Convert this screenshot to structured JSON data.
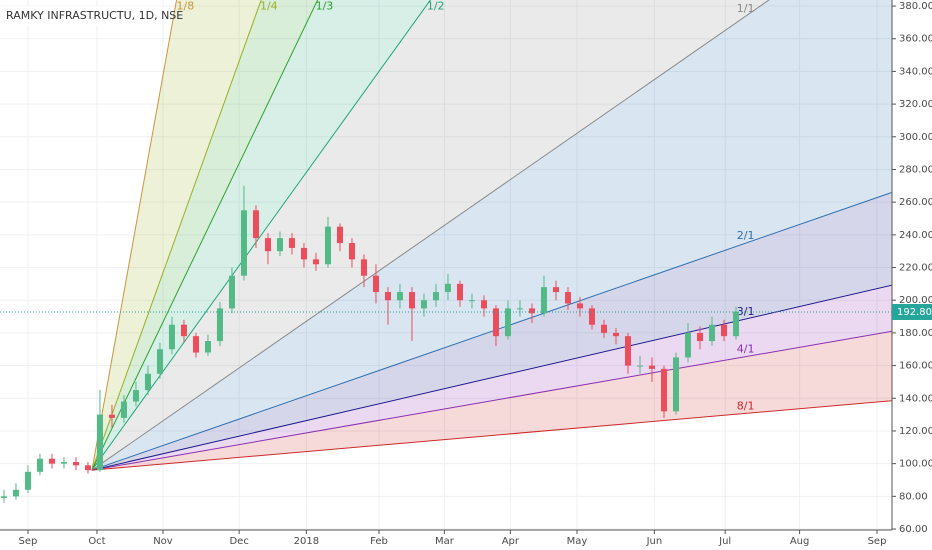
{
  "chart_data": {
    "type": "candlestick",
    "title": "RAMKY INFRASTRUCTU, 1D, NSE",
    "candles": {
      "open": [
        79,
        80,
        84,
        95,
        103,
        100,
        101,
        99,
        96,
        130,
        128,
        138,
        145,
        155,
        170,
        185,
        178,
        168,
        175,
        195,
        215,
        255,
        238,
        230,
        238,
        232,
        225,
        222,
        245,
        235,
        225,
        215,
        205,
        200,
        205,
        195,
        200,
        205,
        210,
        200,
        200,
        195,
        178,
        195,
        195,
        192,
        208,
        205,
        198,
        195,
        185,
        180,
        178,
        160,
        160,
        158,
        132,
        165,
        180,
        175,
        185,
        178
      ],
      "high": [
        84,
        88,
        99,
        106,
        106,
        104,
        104,
        101,
        145,
        136,
        142,
        150,
        160,
        174,
        190,
        188,
        180,
        179,
        199,
        220,
        270,
        258,
        241,
        242,
        241,
        235,
        229,
        251,
        247,
        238,
        228,
        222,
        208,
        210,
        208,
        204,
        210,
        216,
        212,
        204,
        203,
        197,
        200,
        200,
        198,
        215,
        212,
        208,
        202,
        197,
        188,
        183,
        180,
        166,
        165,
        160,
        168,
        186,
        184,
        190,
        188,
        196
      ],
      "low": [
        76,
        78,
        82,
        93,
        97,
        97,
        96,
        94,
        95,
        122,
        125,
        135,
        142,
        152,
        167,
        174,
        165,
        166,
        172,
        192,
        212,
        232,
        222,
        227,
        228,
        220,
        218,
        220,
        230,
        220,
        208,
        198,
        185,
        195,
        175,
        190,
        196,
        200,
        196,
        195,
        190,
        172,
        176,
        190,
        186,
        190,
        200,
        194,
        190,
        182,
        177,
        173,
        155,
        155,
        150,
        128,
        130,
        162,
        170,
        172,
        175,
        176
      ],
      "close": [
        80,
        84,
        95,
        103,
        100,
        101,
        99,
        96,
        130,
        128,
        138,
        145,
        155,
        170,
        185,
        178,
        168,
        175,
        195,
        215,
        255,
        238,
        230,
        238,
        232,
        225,
        222,
        245,
        235,
        225,
        215,
        205,
        200,
        205,
        195,
        200,
        205,
        210,
        200,
        200,
        195,
        178,
        195,
        195,
        192,
        208,
        205,
        198,
        195,
        185,
        180,
        178,
        160,
        160,
        158,
        132,
        165,
        180,
        175,
        185,
        178,
        193
      ]
    },
    "up_color": "#53b987",
    "down_color": "#eb4d5c",
    "xlim": [
      -0.33,
      74
    ],
    "xticks": [
      {
        "value": 2.0,
        "label": "Sep"
      },
      {
        "value": 7.75,
        "label": "Oct"
      },
      {
        "value": 13.25,
        "label": "Nov"
      },
      {
        "value": 19.6,
        "label": "Dec"
      },
      {
        "value": 25.2,
        "label": "2018"
      },
      {
        "value": 31.25,
        "label": "Feb"
      },
      {
        "value": 36.7,
        "label": "Mar"
      },
      {
        "value": 42.2,
        "label": "Apr"
      },
      {
        "value": 47.75,
        "label": "May"
      },
      {
        "value": 54.2,
        "label": "Jun"
      },
      {
        "value": 60.1,
        "label": "Jul"
      },
      {
        "value": 66.3,
        "label": "Aug"
      },
      {
        "value": 72.75,
        "label": "Sep"
      }
    ],
    "ylim": [
      59.4,
      383.7
    ],
    "yticks": [
      {
        "value": 60,
        "label": "60.00"
      },
      {
        "value": 80,
        "label": "80.00"
      },
      {
        "value": 100,
        "label": "100.00"
      },
      {
        "value": 120,
        "label": "120.00"
      },
      {
        "value": 140,
        "label": "140.00"
      },
      {
        "value": 160,
        "label": "160.00"
      },
      {
        "value": 180,
        "label": "180.00"
      },
      {
        "value": 200,
        "label": "200.00"
      },
      {
        "value": 220,
        "label": "220.00"
      },
      {
        "value": 240,
        "label": "240.00"
      },
      {
        "value": 260,
        "label": "260.00"
      },
      {
        "value": 280,
        "label": "280.00"
      },
      {
        "value": 300,
        "label": "300.00"
      },
      {
        "value": 320,
        "label": "320.00"
      },
      {
        "value": 340,
        "label": "340.00"
      },
      {
        "value": 360,
        "label": "360.00"
      },
      {
        "value": 380,
        "label": "380.00"
      }
    ],
    "grid": true,
    "last_price": {
      "value": 192.8,
      "label": "192.80",
      "color": "#26a69a"
    },
    "fan": {
      "origin": [
        7.33,
        96
      ],
      "unit_slope": 5.1,
      "levels": [
        {
          "label": "1/8",
          "ratio": 8,
          "color": "#c8963e"
        },
        {
          "label": "1/4",
          "ratio": 4,
          "color": "#9aaf22"
        },
        {
          "label": "1/3",
          "ratio": 3,
          "color": "#2ca02c"
        },
        {
          "label": "1/2",
          "ratio": 2,
          "color": "#1fa67a"
        },
        {
          "label": "1/1",
          "ratio": 1,
          "color": "#8a8a8a"
        },
        {
          "label": "2/1",
          "ratio": 0.5,
          "color": "#2e6fb0"
        },
        {
          "label": "3/1",
          "ratio": 0.333,
          "color": "#1c1c8c"
        },
        {
          "label": "4/1",
          "ratio": 0.25,
          "color": "#8a2fb0"
        },
        {
          "label": "8/1",
          "ratio": 0.125,
          "color": "#cc2a2a"
        }
      ]
    }
  }
}
